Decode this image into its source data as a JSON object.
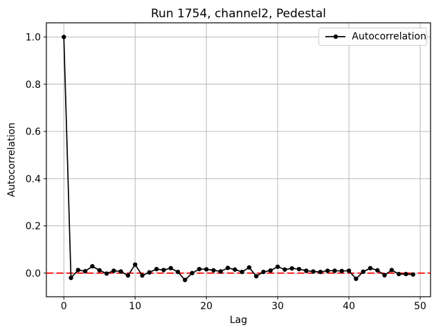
{
  "figure": {
    "background": "#ffffff",
    "title": "Run 1754, channel2, Pedestal"
  },
  "chart_data": {
    "type": "line",
    "title": "Run 1754, channel2, Pedestal",
    "xlabel": "Lag",
    "ylabel": "Autocorrelation",
    "legend": {
      "position": "upper right",
      "entries": [
        {
          "label": "Autocorrelation",
          "color": "#000000",
          "marker": "dot"
        }
      ]
    },
    "grid": true,
    "grid_color": "#b0b0b0",
    "xticks": [
      0,
      10,
      20,
      30,
      40,
      50
    ],
    "yticks": [
      0.0,
      0.2,
      0.4,
      0.6,
      0.8,
      1.0
    ],
    "xlim": [
      -2.45,
      51.45
    ],
    "ylim": [
      -0.1,
      1.06
    ],
    "x": [
      0,
      1,
      2,
      3,
      4,
      5,
      6,
      7,
      8,
      9,
      10,
      11,
      12,
      13,
      14,
      15,
      16,
      17,
      18,
      19,
      20,
      21,
      22,
      23,
      24,
      25,
      26,
      27,
      28,
      29,
      30,
      31,
      32,
      33,
      34,
      35,
      36,
      37,
      38,
      39,
      40,
      41,
      42,
      43,
      44,
      45,
      46,
      47,
      48,
      49
    ],
    "series": [
      {
        "name": "Autocorrelation",
        "color": "#000000",
        "marker": "dot",
        "values": [
          1.0,
          -0.02,
          0.013,
          0.008,
          0.029,
          0.012,
          -0.002,
          0.01,
          0.007,
          -0.01,
          0.036,
          -0.01,
          0.003,
          0.017,
          0.013,
          0.021,
          0.005,
          -0.029,
          0.0,
          0.017,
          0.016,
          0.012,
          0.007,
          0.022,
          0.015,
          0.005,
          0.024,
          -0.013,
          0.005,
          0.011,
          0.027,
          0.015,
          0.02,
          0.017,
          0.01,
          0.007,
          0.005,
          0.01,
          0.01,
          0.009,
          0.01,
          -0.024,
          0.006,
          0.021,
          0.012,
          -0.009,
          0.013,
          -0.004,
          -0.004,
          -0.006
        ]
      }
    ],
    "reference_line": {
      "y": 0.0,
      "color": "#ff0000",
      "style": "dashed"
    }
  }
}
